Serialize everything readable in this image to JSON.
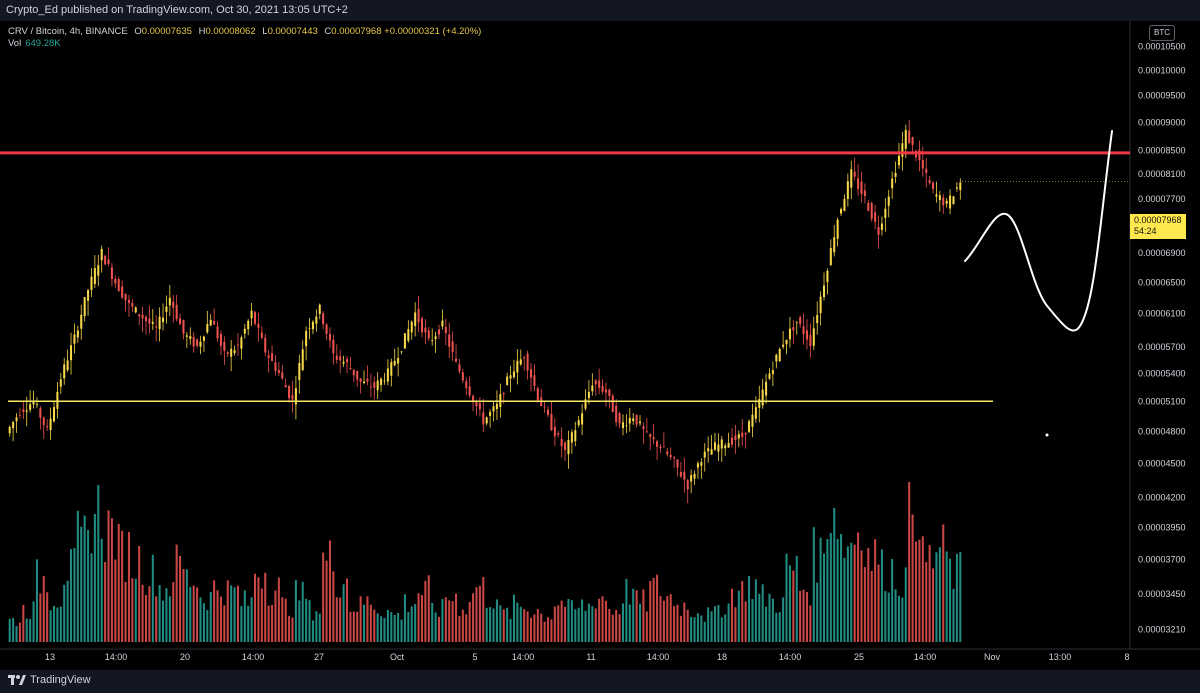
{
  "header": {
    "published_text": "Crypto_Ed published on TradingView.com, Oct 30, 2021 13:05 UTC+2"
  },
  "legend": {
    "title": "CRV / Bitcoin, 4h, BINANCE",
    "open_key": "O",
    "open": "0.00007635",
    "high_key": "H",
    "high": "0.00008062",
    "low_key": "L",
    "low": "0.00007443",
    "close_key": "C",
    "close": "0.00007968",
    "change": "+0.00000321 (+4.20%)",
    "vol_label": "Vol",
    "vol_value": "649.28K"
  },
  "currency_badge": "BTC",
  "price_tag": {
    "price": "0.00007968",
    "countdown": "54:24"
  },
  "footer": {
    "brand": "TradingView"
  },
  "colors": {
    "up": "#f7d84a",
    "down": "#ef5350",
    "vol_up": "#26a69a",
    "vol_down": "#ef5350",
    "resistance": "#f23645",
    "support": "#f5e663",
    "drawing": "#ffffff",
    "axis_text": "#d1d4dc"
  },
  "chart_data": {
    "type": "candlestick",
    "title": "CRV / Bitcoin, 4h, BINANCE",
    "y_axis": {
      "scale": "log",
      "ticks": [
        "0.00010500",
        "0.00010000",
        "0.00009500",
        "0.00009000",
        "0.00008500",
        "0.00008100",
        "0.00007700",
        "0.00007300",
        "0.00006900",
        "0.00006500",
        "0.00006100",
        "0.00005700",
        "0.00005400",
        "0.00005100",
        "0.00004800",
        "0.00004500",
        "0.00004200",
        "0.00003950",
        "0.00003700",
        "0.00003450",
        "0.00003210"
      ],
      "ylim": [
        3.1e-05,
        0.000108
      ]
    },
    "x_axis": {
      "ticks": [
        "13",
        "14:00",
        "20",
        "14:00",
        "27",
        "Oct",
        "5",
        "14:00",
        "11",
        "14:00",
        "18",
        "14:00",
        "25",
        "14:00",
        "Nov",
        "13:00",
        "8"
      ]
    },
    "horizontal_lines": [
      {
        "name": "resistance",
        "price": 8.45e-05
      },
      {
        "name": "support",
        "price": 5.1e-05
      }
    ],
    "path_points": [
      [
        4.78e-05,
        0
      ],
      [
        5e-05,
        0
      ],
      [
        5.1e-05,
        1
      ],
      [
        4.8e-05,
        0
      ],
      [
        5.35e-05,
        1
      ],
      [
        5.8e-05,
        1
      ],
      [
        6.4e-05,
        1
      ],
      [
        6.9e-05,
        1
      ],
      [
        6.5e-05,
        0
      ],
      [
        6.2e-05,
        0
      ],
      [
        6.05e-05,
        0
      ],
      [
        5.9e-05,
        0
      ],
      [
        6.3e-05,
        1
      ],
      [
        5.85e-05,
        0
      ],
      [
        5.7e-05,
        0
      ],
      [
        6.05e-05,
        1
      ],
      [
        5.6e-05,
        0
      ],
      [
        5.7e-05,
        1
      ],
      [
        6.1e-05,
        1
      ],
      [
        5.65e-05,
        0
      ],
      [
        5.4e-05,
        0
      ],
      [
        5.1e-05,
        0
      ],
      [
        5.9e-05,
        1
      ],
      [
        6.15e-05,
        1
      ],
      [
        5.6e-05,
        0
      ],
      [
        5.5e-05,
        0
      ],
      [
        5.3e-05,
        0
      ],
      [
        5.25e-05,
        0
      ],
      [
        5.4e-05,
        1
      ],
      [
        5.7e-05,
        1
      ],
      [
        6.1e-05,
        1
      ],
      [
        5.75e-05,
        0
      ],
      [
        5.95e-05,
        1
      ],
      [
        5.5e-05,
        0
      ],
      [
        5.2e-05,
        0
      ],
      [
        4.9e-05,
        0
      ],
      [
        5.05e-05,
        1
      ],
      [
        5.4e-05,
        1
      ],
      [
        5.6e-05,
        1
      ],
      [
        5.15e-05,
        0
      ],
      [
        4.85e-05,
        0
      ],
      [
        4.6e-05,
        0
      ],
      [
        4.9e-05,
        1
      ],
      [
        5.3e-05,
        1
      ],
      [
        5.2e-05,
        0
      ],
      [
        4.85e-05,
        0
      ],
      [
        4.95e-05,
        1
      ],
      [
        4.75e-05,
        0
      ],
      [
        4.65e-05,
        0
      ],
      [
        4.5e-05,
        0
      ],
      [
        4.3e-05,
        0
      ],
      [
        4.55e-05,
        1
      ],
      [
        4.65e-05,
        1
      ],
      [
        4.7e-05,
        1
      ],
      [
        4.75e-05,
        1
      ],
      [
        5e-05,
        1
      ],
      [
        5.4e-05,
        1
      ],
      [
        5.75e-05,
        1
      ],
      [
        6e-05,
        1
      ],
      [
        5.75e-05,
        0
      ],
      [
        6.5e-05,
        1
      ],
      [
        7.4e-05,
        1
      ],
      [
        8.1e-05,
        1
      ],
      [
        7.7e-05,
        0
      ],
      [
        7.2e-05,
        0
      ],
      [
        8e-05,
        1
      ],
      [
        8.8e-05,
        1
      ],
      [
        8.3e-05,
        0
      ],
      [
        7.8e-05,
        0
      ],
      [
        7.6e-05,
        0
      ],
      [
        7.968e-05,
        1
      ]
    ],
    "volume": {
      "label": "Vol",
      "last": "649.28K",
      "values": [
        12,
        18,
        35,
        25,
        40,
        55,
        72,
        62,
        50,
        45,
        38,
        30,
        42,
        35,
        25,
        30,
        28,
        22,
        40,
        30,
        20,
        26,
        18,
        45,
        35,
        20,
        22,
        18,
        15,
        22,
        28,
        18,
        25,
        20,
        30,
        25,
        16,
        20,
        18,
        15,
        22,
        18,
        20,
        25,
        18,
        28,
        22,
        30,
        25,
        20,
        18,
        15,
        20,
        28,
        32,
        25,
        22,
        40,
        30,
        48,
        75,
        55,
        62,
        48,
        40,
        35,
        80,
        45,
        50,
        38,
        30
      ]
    }
  }
}
